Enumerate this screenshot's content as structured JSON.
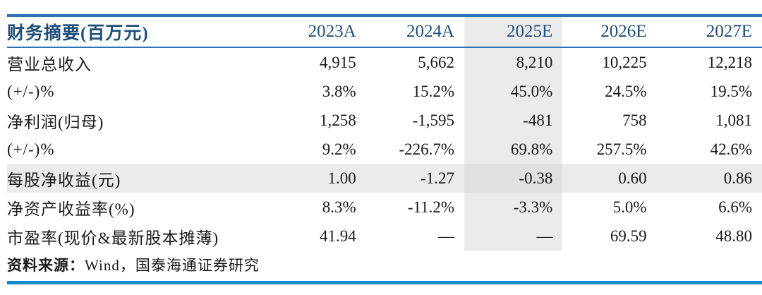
{
  "table": {
    "title": "财务摘要(百万元)",
    "columns": [
      "2023A",
      "2024A",
      "2025E",
      "2026E",
      "2027E"
    ],
    "rows": [
      {
        "label": "营业总收入",
        "values": [
          "4,915",
          "5,662",
          "8,210",
          "10,225",
          "12,218"
        ]
      },
      {
        "label": "(+/-)%",
        "values": [
          "3.8%",
          "15.2%",
          "45.0%",
          "24.5%",
          "19.5%"
        ]
      },
      {
        "label": "净利润(归母)",
        "values": [
          "1,258",
          "-1,595",
          "-481",
          "758",
          "1,081"
        ]
      },
      {
        "label": "(+/-)%",
        "values": [
          "9.2%",
          "-226.7%",
          "69.8%",
          "257.5%",
          "42.6%"
        ]
      },
      {
        "label": "每股净收益(元)",
        "values": [
          "1.00",
          "-1.27",
          "-0.38",
          "0.60",
          "0.86"
        ]
      },
      {
        "label": "净资产收益率(%)",
        "values": [
          "8.3%",
          "-11.2%",
          "-3.3%",
          "5.0%",
          "6.6%"
        ]
      },
      {
        "label": "市盈率(现价&最新股本摊薄)",
        "values": [
          "41.94",
          "—",
          "—",
          "69.59",
          "48.80"
        ]
      }
    ],
    "highlight": {
      "column": "2025E",
      "row": "每股净收益(元)"
    },
    "source_label": "资料来源：",
    "source_text": "Wind，国泰海通证券研究"
  },
  "colors": {
    "header_text": "#1F4E79",
    "top_rule": "#2E74B5",
    "header_rule": "#2E74B5",
    "bottom_rule": "#1389D1",
    "highlight_bg": "#EBEBEB",
    "body_text": "#1A1A1A"
  }
}
